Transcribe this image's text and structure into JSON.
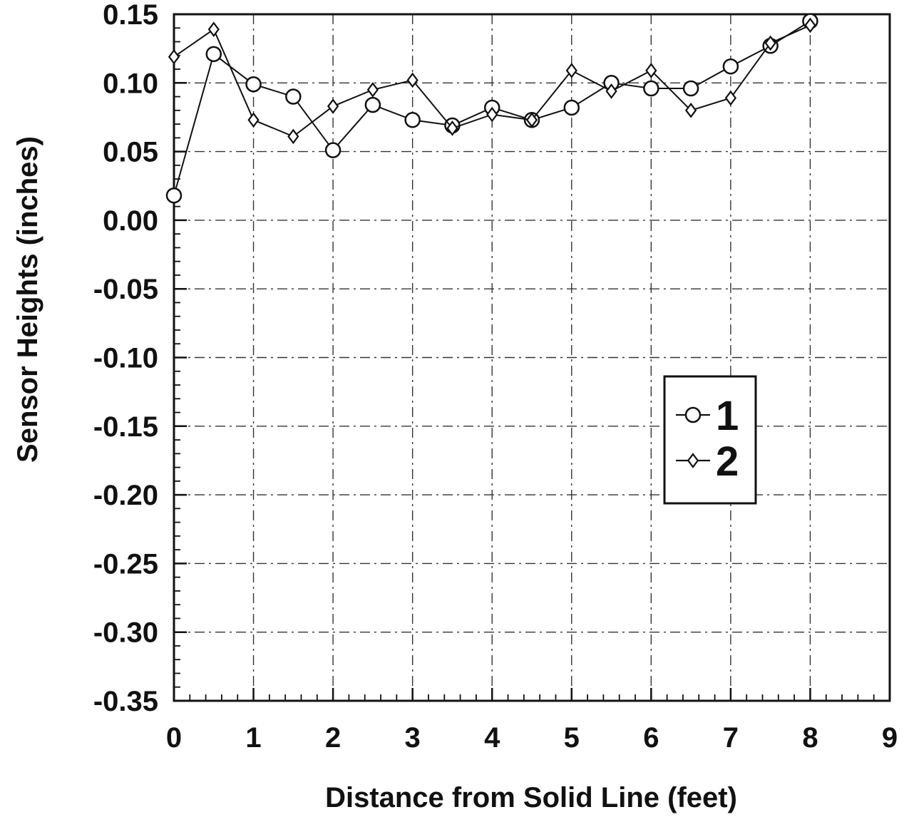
{
  "chart_data": {
    "type": "line",
    "title": "",
    "xlabel": "Distance from Solid Line (feet)",
    "ylabel": "Sensor Heights (inches)",
    "xlim": [
      0,
      9
    ],
    "ylim": [
      -0.35,
      0.15
    ],
    "x_ticks": [
      "0",
      "1",
      "2",
      "3",
      "4",
      "5",
      "6",
      "7",
      "8",
      "9"
    ],
    "y_ticks": [
      "0.15",
      "0.10",
      "0.05",
      "0.00",
      "-0.05",
      "-0.10",
      "-0.15",
      "-0.20",
      "-0.25",
      "-0.30",
      "-0.35"
    ],
    "grid": true,
    "legend_position": "right-center",
    "series": [
      {
        "name": "1",
        "marker": "circle",
        "x": [
          0,
          0.5,
          1,
          1.5,
          2,
          2.5,
          3,
          3.5,
          4,
          4.5,
          5,
          5.5,
          6,
          6.5,
          7,
          7.5,
          8
        ],
        "y": [
          0.018,
          0.121,
          0.099,
          0.09,
          0.051,
          0.084,
          0.073,
          0.069,
          0.082,
          0.073,
          0.082,
          0.1,
          0.096,
          0.096,
          0.112,
          0.127,
          0.145
        ]
      },
      {
        "name": "2",
        "marker": "diamond",
        "x": [
          0,
          0.5,
          1,
          1.5,
          2,
          2.5,
          3,
          3.5,
          4,
          4.5,
          5,
          5.5,
          6,
          6.5,
          7,
          7.5,
          8
        ],
        "y": [
          0.119,
          0.139,
          0.073,
          0.061,
          0.083,
          0.095,
          0.102,
          0.067,
          0.077,
          0.073,
          0.109,
          0.094,
          0.109,
          0.08,
          0.089,
          0.129,
          0.142
        ]
      }
    ]
  }
}
